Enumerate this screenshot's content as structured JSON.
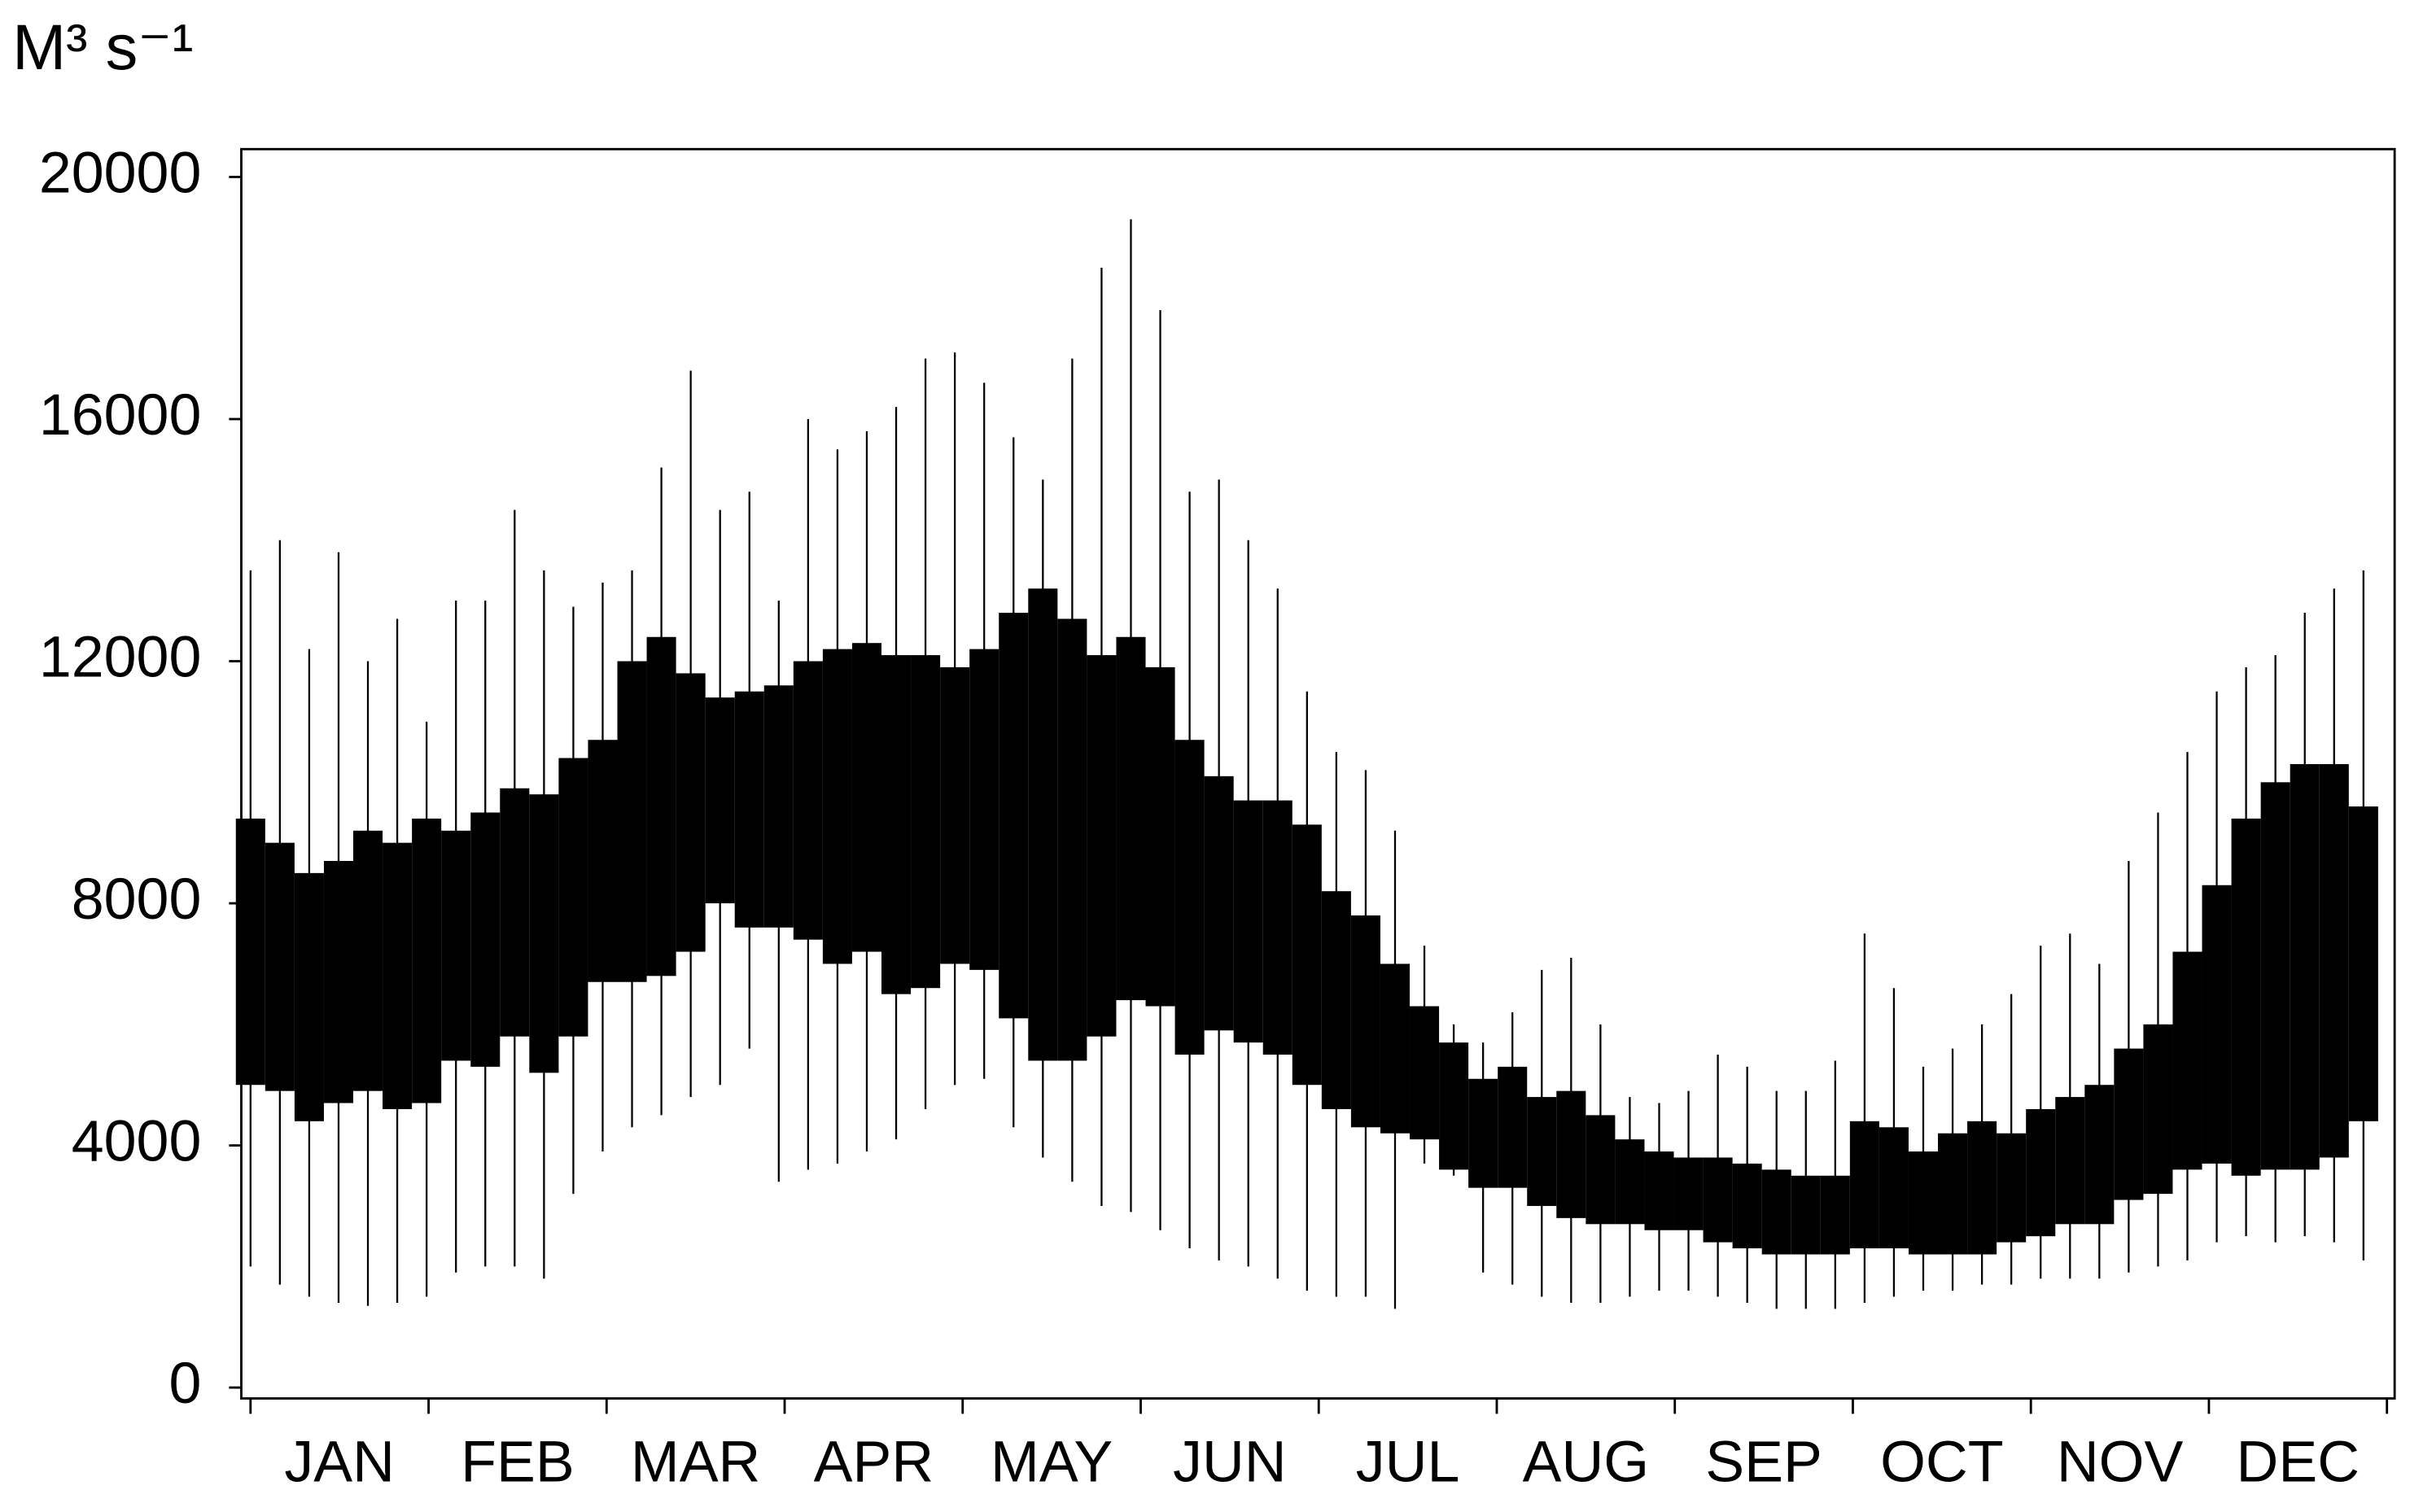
{
  "chart_data": {
    "type": "range",
    "y_label": "M³ s⁻¹",
    "categories": [
      "JAN",
      "FEB",
      "MAR",
      "APR",
      "MAY",
      "JUN",
      "JUL",
      "AUG",
      "SEP",
      "OCT",
      "NOV",
      "DEC"
    ],
    "x": [
      1,
      6,
      11,
      16,
      21,
      26,
      31,
      36,
      41,
      46,
      51,
      56,
      61,
      66,
      71,
      76,
      81,
      86,
      91,
      96,
      101,
      106,
      111,
      116,
      121,
      126,
      131,
      136,
      141,
      146,
      151,
      156,
      161,
      166,
      171,
      176,
      181,
      186,
      191,
      196,
      201,
      206,
      211,
      216,
      221,
      226,
      231,
      236,
      241,
      246,
      251,
      256,
      261,
      266,
      271,
      276,
      281,
      286,
      291,
      296,
      301,
      306,
      311,
      316,
      321,
      326,
      331,
      336,
      341,
      346,
      351,
      356,
      361
    ],
    "max": [
      13500,
      14000,
      12200,
      13800,
      12000,
      12700,
      11000,
      13000,
      13000,
      14500,
      13500,
      12900,
      13300,
      13500,
      15200,
      16800,
      14500,
      14800,
      13000,
      16000,
      15500,
      15800,
      16200,
      17000,
      17100,
      16600,
      15700,
      15000,
      17000,
      18500,
      19300,
      17800,
      14800,
      15000,
      14000,
      13200,
      11500,
      10500,
      10200,
      9200,
      7300,
      6000,
      5700,
      6200,
      6900,
      7100,
      6000,
      4800,
      4700,
      4900,
      5500,
      5300,
      4900,
      4900,
      5400,
      7500,
      6600,
      5300,
      5600,
      6000,
      6500,
      7300,
      7500,
      7000,
      8700,
      9500,
      10500,
      11500,
      11900,
      12100,
      12800,
      13200,
      13500
    ],
    "q3": [
      9400,
      9000,
      8500,
      8700,
      9200,
      9000,
      9400,
      9200,
      9500,
      9900,
      9800,
      10400,
      10700,
      12000,
      12400,
      11800,
      11400,
      11500,
      11600,
      12000,
      12200,
      12300,
      12100,
      12100,
      11900,
      12200,
      12800,
      13200,
      12700,
      12100,
      12400,
      11900,
      10700,
      10100,
      9700,
      9700,
      9300,
      8200,
      7800,
      7000,
      6300,
      5700,
      5100,
      5300,
      4800,
      4900,
      4500,
      4100,
      3900,
      3800,
      3800,
      3700,
      3600,
      3500,
      3500,
      4400,
      4300,
      3900,
      4200,
      4400,
      4200,
      4600,
      4800,
      5000,
      5600,
      6000,
      7200,
      8300,
      9400,
      10000,
      10300,
      10300,
      9600
    ],
    "q1": [
      5000,
      4900,
      4400,
      4700,
      4900,
      4600,
      4700,
      5400,
      5300,
      5800,
      5200,
      5800,
      6700,
      6700,
      6800,
      7200,
      8000,
      7600,
      7600,
      7400,
      7000,
      7200,
      6500,
      6600,
      7000,
      6900,
      6100,
      5400,
      5400,
      5800,
      6400,
      6300,
      5500,
      5900,
      5700,
      5500,
      5000,
      4600,
      4300,
      4200,
      4100,
      3600,
      3300,
      3300,
      3000,
      2800,
      2700,
      2700,
      2600,
      2600,
      2400,
      2300,
      2200,
      2200,
      2200,
      2300,
      2300,
      2200,
      2200,
      2200,
      2400,
      2500,
      2700,
      2700,
      3100,
      3200,
      3600,
      3700,
      3500,
      3600,
      3600,
      3800,
      4400
    ],
    "min": [
      2000,
      1700,
      1500,
      1400,
      1350,
      1400,
      1500,
      1900,
      2000,
      2000,
      1800,
      3200,
      3900,
      4300,
      4500,
      4800,
      5000,
      5600,
      3400,
      3600,
      3700,
      3900,
      4100,
      4600,
      5000,
      5100,
      4300,
      3800,
      3400,
      3000,
      2900,
      2600,
      2300,
      2100,
      2000,
      1800,
      1600,
      1500,
      1500,
      1300,
      3700,
      3500,
      1900,
      1700,
      1500,
      1400,
      1400,
      1500,
      1600,
      1600,
      1500,
      1400,
      1300,
      1300,
      1300,
      1400,
      1500,
      1600,
      1600,
      1700,
      1700,
      1800,
      1800,
      1800,
      1900,
      2000,
      2100,
      2400,
      2500,
      2400,
      2500,
      2400,
      2100
    ],
    "color": "#000000",
    "xlim": [
      1,
      365
    ],
    "ylim": [
      -180,
      20460
    ],
    "yticks": [
      0,
      4000,
      8000,
      12000,
      16000,
      20000
    ]
  }
}
